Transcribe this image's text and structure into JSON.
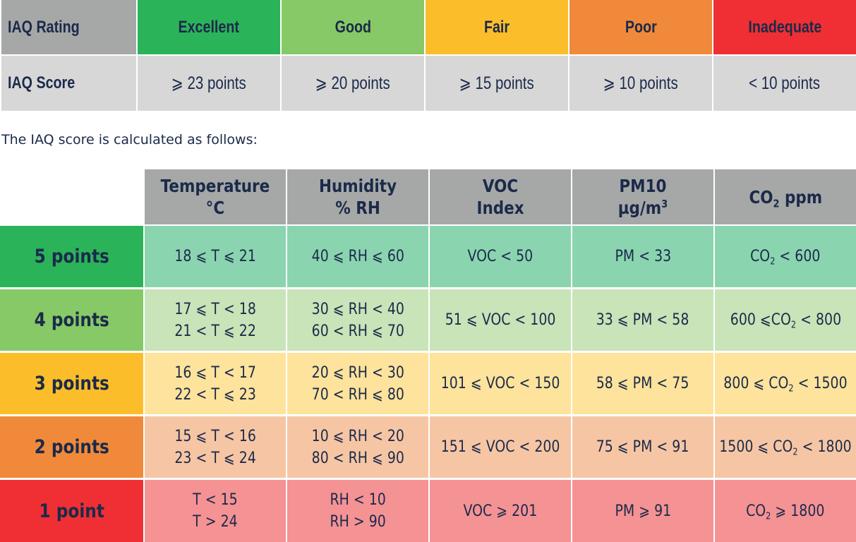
{
  "rating_table": {
    "row_label_rating": "IAQ Rating",
    "row_label_score": "IAQ Score",
    "ratings": [
      {
        "label": "Excellent",
        "score": "⩾ 23 points",
        "color": "#2bb35a"
      },
      {
        "label": "Good",
        "score": "⩾ 20 points",
        "color": "#86c966"
      },
      {
        "label": "Fair",
        "score": "⩾ 15 points",
        "color": "#fbbe2a"
      },
      {
        "label": "Poor",
        "score": "⩾ 10 points",
        "color": "#f08a3a"
      },
      {
        "label": "Inadequate",
        "score": "< 10 points",
        "color": "#ef2f33"
      }
    ]
  },
  "intro_text": "The IAQ score is calculated as follows:",
  "points_table": {
    "headers": [
      {
        "line1": "Temperature",
        "line2": "°C"
      },
      {
        "line1": "Humidity",
        "line2": "% RH"
      },
      {
        "line1": "VOC",
        "line2": "Index"
      },
      {
        "line1": "PM10",
        "line2": "µg/m",
        "sup": "3"
      },
      {
        "pre": "CO",
        "sub": "2",
        "post": " ppm"
      }
    ],
    "rows": [
      {
        "label": "5 points",
        "label_color": "#2bb35a",
        "cell_color": "#8ad4b0",
        "temperature": [
          "18 ⩽ T ⩽ 21"
        ],
        "humidity": [
          "40 ⩽ RH ⩽ 60"
        ],
        "voc": "VOC < 50",
        "pm10": "PM < 33",
        "co2": {
          "pre": "CO",
          "sub": "2",
          "post": " < 600"
        }
      },
      {
        "label": "4 points",
        "label_color": "#86c966",
        "cell_color": "#c8e4b8",
        "temperature": [
          "17 ⩽ T < 18",
          "21 < T ⩽ 22"
        ],
        "humidity": [
          "30 ⩽ RH < 40",
          "60 < RH ⩽ 70"
        ],
        "voc": "51 ⩽ VOC < 100",
        "pm10": "33 ⩽ PM < 58",
        "co2": {
          "pre": "600 ⩽CO",
          "sub": "2",
          "post": " < 800"
        }
      },
      {
        "label": "3 points",
        "label_color": "#fbbe2a",
        "cell_color": "#fde39c",
        "temperature": [
          "16 ⩽ T < 17",
          "22 < T ⩽ 23"
        ],
        "humidity": [
          "20 ⩽ RH < 30",
          "70 < RH ⩽ 80"
        ],
        "voc": "101 ⩽ VOC < 150",
        "pm10": "58 ⩽ PM < 75",
        "co2": {
          "pre": "800 ⩽ CO",
          "sub": "2",
          "post": " < 1500"
        }
      },
      {
        "label": "2 points",
        "label_color": "#f08a3a",
        "cell_color": "#f6c6a4",
        "temperature": [
          "15 ⩽ T < 16",
          "23 < T ⩽ 24"
        ],
        "humidity": [
          "10 ⩽ RH < 20",
          "80 < RH ⩽ 90"
        ],
        "voc": "151 ⩽ VOC < 200",
        "pm10": "75 ⩽ PM < 91",
        "co2": {
          "pre": "1500 ⩽ CO",
          "sub": "2",
          "post": " < 1800"
        }
      },
      {
        "label": "1 point",
        "label_color": "#ef2f33",
        "cell_color": "#f49294",
        "temperature": [
          "T < 15",
          "T > 24"
        ],
        "humidity": [
          "RH < 10",
          "RH > 90"
        ],
        "voc": "VOC ⩾ 201",
        "pm10": "PM ⩾ 91",
        "co2": {
          "pre": "CO",
          "sub": "2",
          "post": " ⩾ 1800"
        }
      }
    ]
  },
  "colors": {
    "header_gray": "#a6a8a7",
    "score_gray": "#d7d7d7",
    "text_navy": "#1b2a4a"
  }
}
